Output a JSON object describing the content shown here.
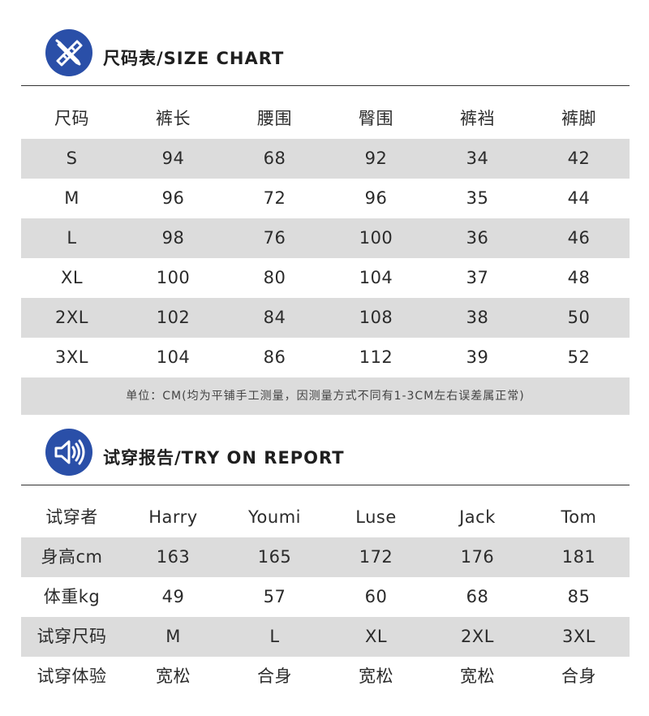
{
  "size_chart": {
    "title": "尺码表/SIZE CHART",
    "icon": "pencil-ruler-icon",
    "headers": [
      "尺码",
      "裤长",
      "腰围",
      "臀围",
      "裤裆",
      "裤脚"
    ],
    "rows": [
      [
        "S",
        "94",
        "68",
        "92",
        "34",
        "42"
      ],
      [
        "M",
        "96",
        "72",
        "96",
        "35",
        "44"
      ],
      [
        "L",
        "98",
        "76",
        "100",
        "36",
        "46"
      ],
      [
        "XL",
        "100",
        "80",
        "104",
        "37",
        "48"
      ],
      [
        "2XL",
        "102",
        "84",
        "108",
        "38",
        "50"
      ],
      [
        "3XL",
        "104",
        "86",
        "112",
        "39",
        "52"
      ]
    ],
    "note": "单位：CM(均为平铺手工测量，因测量方式不同有1-3CM左右误差属正常)"
  },
  "try_on": {
    "title": "试穿报告/TRY ON REPORT",
    "icon": "speaker-icon",
    "headers": [
      "试穿者",
      "Harry",
      "Youmi",
      "Luse",
      "Jack",
      "Tom"
    ],
    "rows": [
      [
        "身高cm",
        "163",
        "165",
        "172",
        "176",
        "181"
      ],
      [
        "体重kg",
        "49",
        "57",
        "60",
        "68",
        "85"
      ],
      [
        "试穿尺码",
        "M",
        "L",
        "XL",
        "2XL",
        "3XL"
      ],
      [
        "试穿体验",
        "宽松",
        "合身",
        "宽松",
        "宽松",
        "合身"
      ]
    ]
  },
  "colors": {
    "accent": "#2a4fa8",
    "shade": "#dcdcdc",
    "rule": "#333333"
  }
}
